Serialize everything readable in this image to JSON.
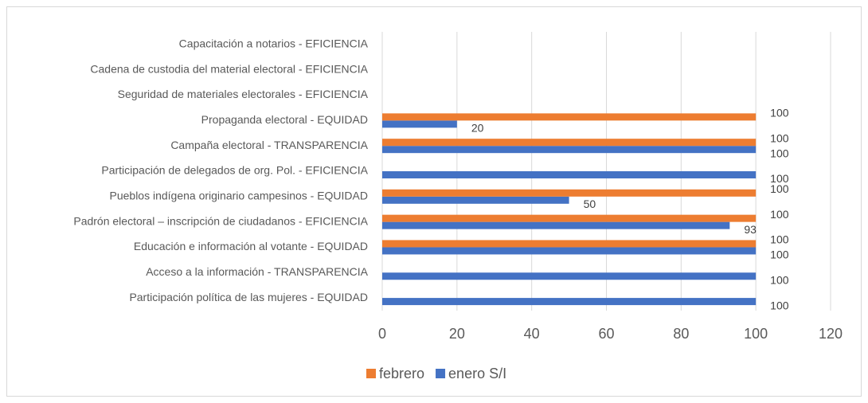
{
  "chart_data": {
    "type": "hbar",
    "categories": [
      "Participación política de las mujeres - EQUIDAD",
      "Acceso a la información - TRANSPARENCIA",
      "Educación e información al votante - EQUIDAD",
      "Padrón electoral – inscripción de ciudadanos - EFICIENCIA",
      "Pueblos indígena originario campesinos - EQUIDAD",
      "Participación de delegados de org. Pol. - EFICIENCIA",
      "Campaña electoral - TRANSPARENCIA",
      "Propaganda electoral - EQUIDAD",
      "Seguridad de materiales electorales - EFICIENCIA",
      "Cadena de custodia del material electoral - EFICIENCIA",
      "Capacitación a notarios - EFICIENCIA"
    ],
    "series": [
      {
        "name": "enero S/I",
        "color": "#4472c4",
        "values": [
          100,
          100,
          100,
          93,
          50,
          100,
          100,
          20,
          null,
          null,
          null
        ]
      },
      {
        "name": "febrero",
        "color": "#ed7d31",
        "values": [
          null,
          null,
          100,
          100,
          100,
          null,
          100,
          100,
          null,
          null,
          null
        ]
      }
    ],
    "xlim": [
      0,
      120
    ],
    "xticks": [
      0,
      20,
      40,
      60,
      80,
      100,
      120
    ],
    "grid": true,
    "legend": "bottom"
  }
}
